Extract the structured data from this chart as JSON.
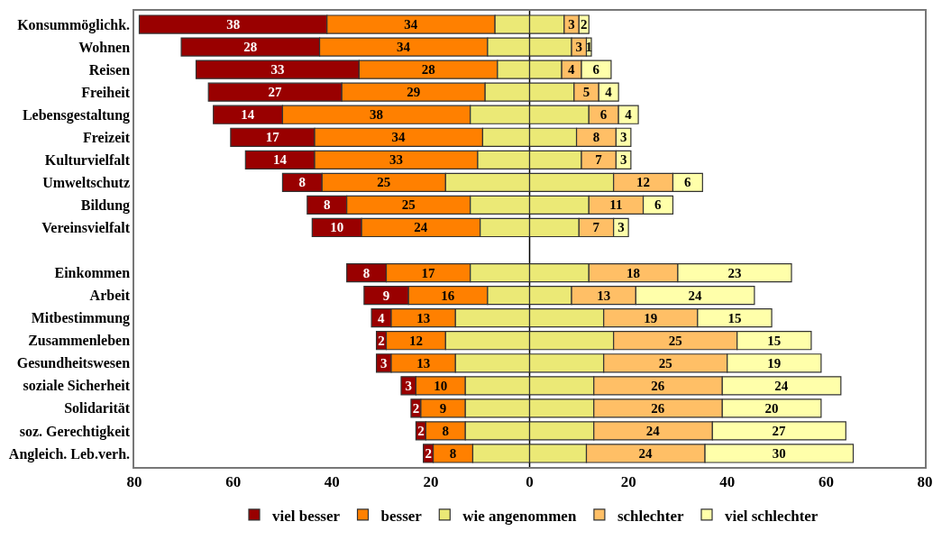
{
  "chart_data": {
    "type": "bar",
    "orientation": "horizontal",
    "categories": [
      "Konsummöglichk.",
      "Wohnen",
      "Reisen",
      "Freiheit",
      "Lebensgestaltung",
      "Freizeit",
      "Kulturvielfalt",
      "Umweltschutz",
      "Bildung",
      "Vereinsvielfalt",
      null,
      "Einkommen",
      "Arbeit",
      "Mitbestimmung",
      "Zusammenleben",
      "Gesundheitswesen",
      "soziale Sicherheit",
      "Solidarität",
      "soz. Gerechtigkeit",
      "Angleich. Leb.verh."
    ],
    "series": [
      {
        "name": "viel besser",
        "color": "#990000",
        "values": [
          38,
          28,
          33,
          27,
          14,
          17,
          14,
          8,
          8,
          10,
          null,
          8,
          9,
          4,
          2,
          3,
          3,
          2,
          2,
          2
        ],
        "base": [
          -79,
          -70.5,
          -67.5,
          -65,
          -64,
          -60.5,
          -57.5,
          -50,
          -45,
          -44,
          null,
          -37,
          -33.5,
          -32,
          -31,
          -31,
          -26,
          -24,
          -23,
          -21.5
        ],
        "value_labels": [
          "38",
          "28",
          "33",
          "27",
          "14",
          "17",
          "14",
          "8",
          "8",
          "10",
          null,
          "8",
          "9",
          "4",
          "2",
          "3",
          "3",
          "2",
          "2",
          "2"
        ]
      },
      {
        "name": "besser",
        "color": "#ff8000",
        "values": [
          34,
          34,
          28,
          29,
          38,
          34,
          33,
          25,
          25,
          24,
          null,
          17,
          16,
          13,
          12,
          13,
          10,
          9,
          8,
          8
        ],
        "base": [
          -41,
          -42.5,
          -34.5,
          -38,
          -50,
          -43.5,
          -43.5,
          -42,
          -37,
          -34,
          null,
          -29,
          -24.5,
          -28,
          -29,
          -28,
          -23,
          -22,
          -21,
          -19.5
        ],
        "value_labels": [
          "34",
          "34",
          "28",
          "29",
          "38",
          "34",
          "33",
          "25",
          "25",
          "24",
          null,
          "17",
          "16",
          "13",
          "12",
          "13",
          "10",
          "9",
          "8",
          "8"
        ]
      },
      {
        "name": "wie angenommen",
        "color": "#ebe976",
        "values": [
          7,
          8.5,
          6.5,
          9,
          12,
          9.5,
          10.5,
          17,
          12,
          10,
          null,
          12,
          8.5,
          15,
          17,
          15,
          13,
          13,
          13,
          11.5
        ],
        "base": [
          -7,
          -8.5,
          -6.5,
          -9,
          -12,
          -9.5,
          -10.5,
          -17,
          -12,
          -10,
          null,
          -12,
          -8.5,
          -15,
          -17,
          -15,
          -13,
          -13,
          -13,
          -11.5
        ]
      },
      {
        "color": "#ebe976",
        "values": [
          7,
          8.5,
          6.5,
          9,
          12,
          9.5,
          10.5,
          17,
          12,
          10,
          null,
          12,
          8.5,
          15,
          17,
          15,
          13,
          13,
          13,
          11.5
        ],
        "base": [
          0,
          0,
          0,
          0,
          0,
          0,
          0,
          0,
          0,
          0,
          null,
          0,
          0,
          0,
          0,
          0,
          0,
          0,
          0,
          0
        ]
      },
      {
        "name": "schlechter",
        "color": "#ffbf66",
        "values": [
          3,
          3,
          4,
          5,
          6,
          8,
          7,
          12,
          11,
          7,
          null,
          18,
          13,
          19,
          25,
          25,
          26,
          26,
          24,
          24
        ],
        "base": [
          7,
          8.5,
          6.5,
          9,
          12,
          9.5,
          10.5,
          17,
          12,
          10,
          null,
          12,
          8.5,
          15,
          17,
          15,
          13,
          13,
          13,
          11.5
        ],
        "value_labels": [
          "3",
          "3",
          "4",
          "5",
          "6",
          "8",
          "7",
          "12",
          "11",
          "7",
          null,
          "18",
          "13",
          "19",
          "25",
          "25",
          "26",
          "26",
          "24",
          "24"
        ]
      },
      {
        "name": "viel schlechter",
        "color": "#ffffaa",
        "values": [
          2,
          1,
          6,
          4,
          4,
          3,
          3,
          6,
          6,
          3,
          null,
          23,
          24,
          15,
          15,
          19,
          24,
          20,
          27,
          30
        ],
        "base": [
          10,
          11.5,
          10.5,
          14,
          18,
          17.5,
          17.5,
          29,
          23,
          17,
          null,
          30,
          21.5,
          34,
          42,
          40,
          39,
          39,
          37,
          35.5
        ],
        "value_labels": [
          "2",
          "1",
          "6",
          "4",
          "4",
          "3",
          "3",
          "6",
          "6",
          "3",
          null,
          "23",
          "24",
          "15",
          "15",
          "19",
          "24",
          "20",
          "27",
          "30"
        ]
      }
    ],
    "xlim": [
      -80,
      80
    ],
    "xticks": [
      {
        "value": -80,
        "label": "80"
      },
      {
        "value": -60,
        "label": "60"
      },
      {
        "value": -40,
        "label": "40"
      },
      {
        "value": -20,
        "label": "20"
      },
      0,
      20,
      40,
      60,
      80
    ],
    "ref_lines": [
      {
        "axis": "x",
        "value": 0,
        "color": "#000000"
      }
    ],
    "grid": false,
    "legend": "bottom"
  }
}
